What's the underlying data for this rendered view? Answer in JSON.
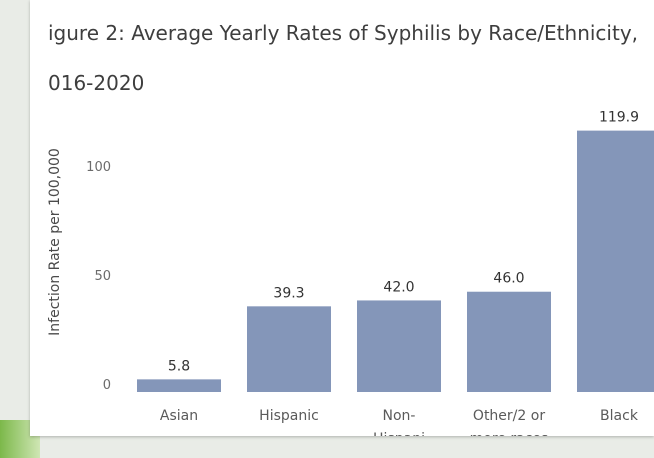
{
  "chart_data": {
    "type": "bar",
    "title_line1": "igure 2: Average Yearly Rates of Syphilis by Race/Ethnicity,",
    "title_line2": "016-2020",
    "ylabel": "Infection Rate per 100,000",
    "xlabel": "",
    "categories": [
      [
        "Asian"
      ],
      [
        "Hispanic"
      ],
      [
        "Non-",
        "Hispani"
      ],
      [
        "Other/2 or",
        "more races"
      ],
      [
        "Black"
      ]
    ],
    "values": [
      5.8,
      39.3,
      42.0,
      46.0,
      119.9
    ],
    "value_labels": [
      "5.8",
      "39.3",
      "42.0",
      "46.0",
      "119.9"
    ],
    "y_ticks": [
      0,
      50,
      100
    ],
    "ylim": [
      0,
      130
    ],
    "bar_color": "#8496b9",
    "grid": false
  }
}
